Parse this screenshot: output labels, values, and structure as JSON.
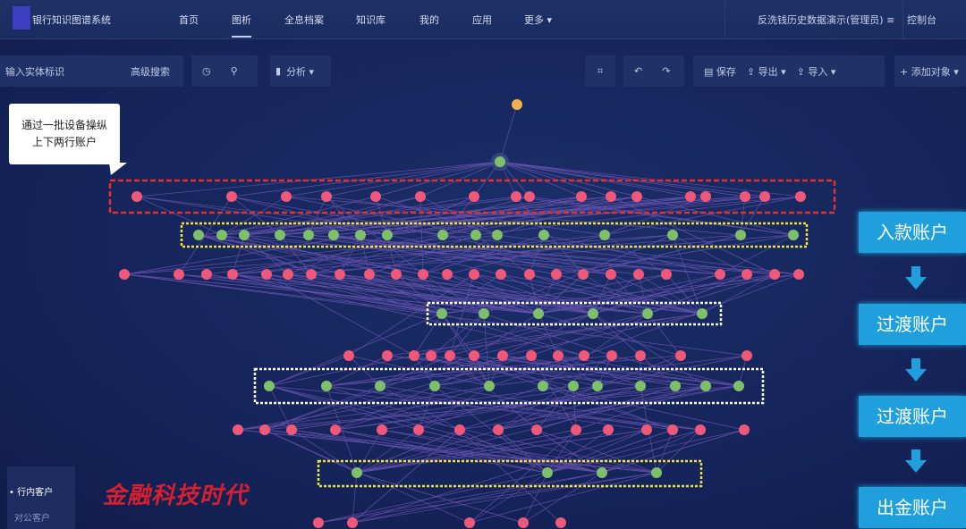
{
  "header": {
    "app_title": "银行知识图谱系统",
    "nav": [
      "首页",
      "图析",
      "全息档案",
      "知识库",
      "我的",
      "应用",
      "更多 ▾"
    ],
    "active_nav": "图析",
    "user": "反洗钱历史数据演示(管理员) ≡",
    "console": "控制台"
  },
  "toolbar": {
    "search_placeholder": "输入实体标识",
    "advanced_search": "高级搜索",
    "analyze": "分析 ▾",
    "save": "保存",
    "export": "导出 ▾",
    "import": "导入 ▾",
    "add_object": "+ 添加对象 ▾"
  },
  "callout": {
    "line1": "通过一批设备操纵",
    "line2": "上下两行账户"
  },
  "flow": [
    "入款账户",
    "过渡账户",
    "过渡账户",
    "出金账户"
  ],
  "legend": [
    "• 行内客户",
    "对公客户"
  ],
  "watermark": "金融科技时代",
  "colors": {
    "customer_node": "#f0587a",
    "device_node": "#7ec06a",
    "root_node": "#f0b050",
    "edge": "#9a6ee0",
    "flow_box": "#1fa0dc",
    "box_red": "#e03030",
    "box_yellow": "#f0e040",
    "box_white": "#ffffff"
  }
}
